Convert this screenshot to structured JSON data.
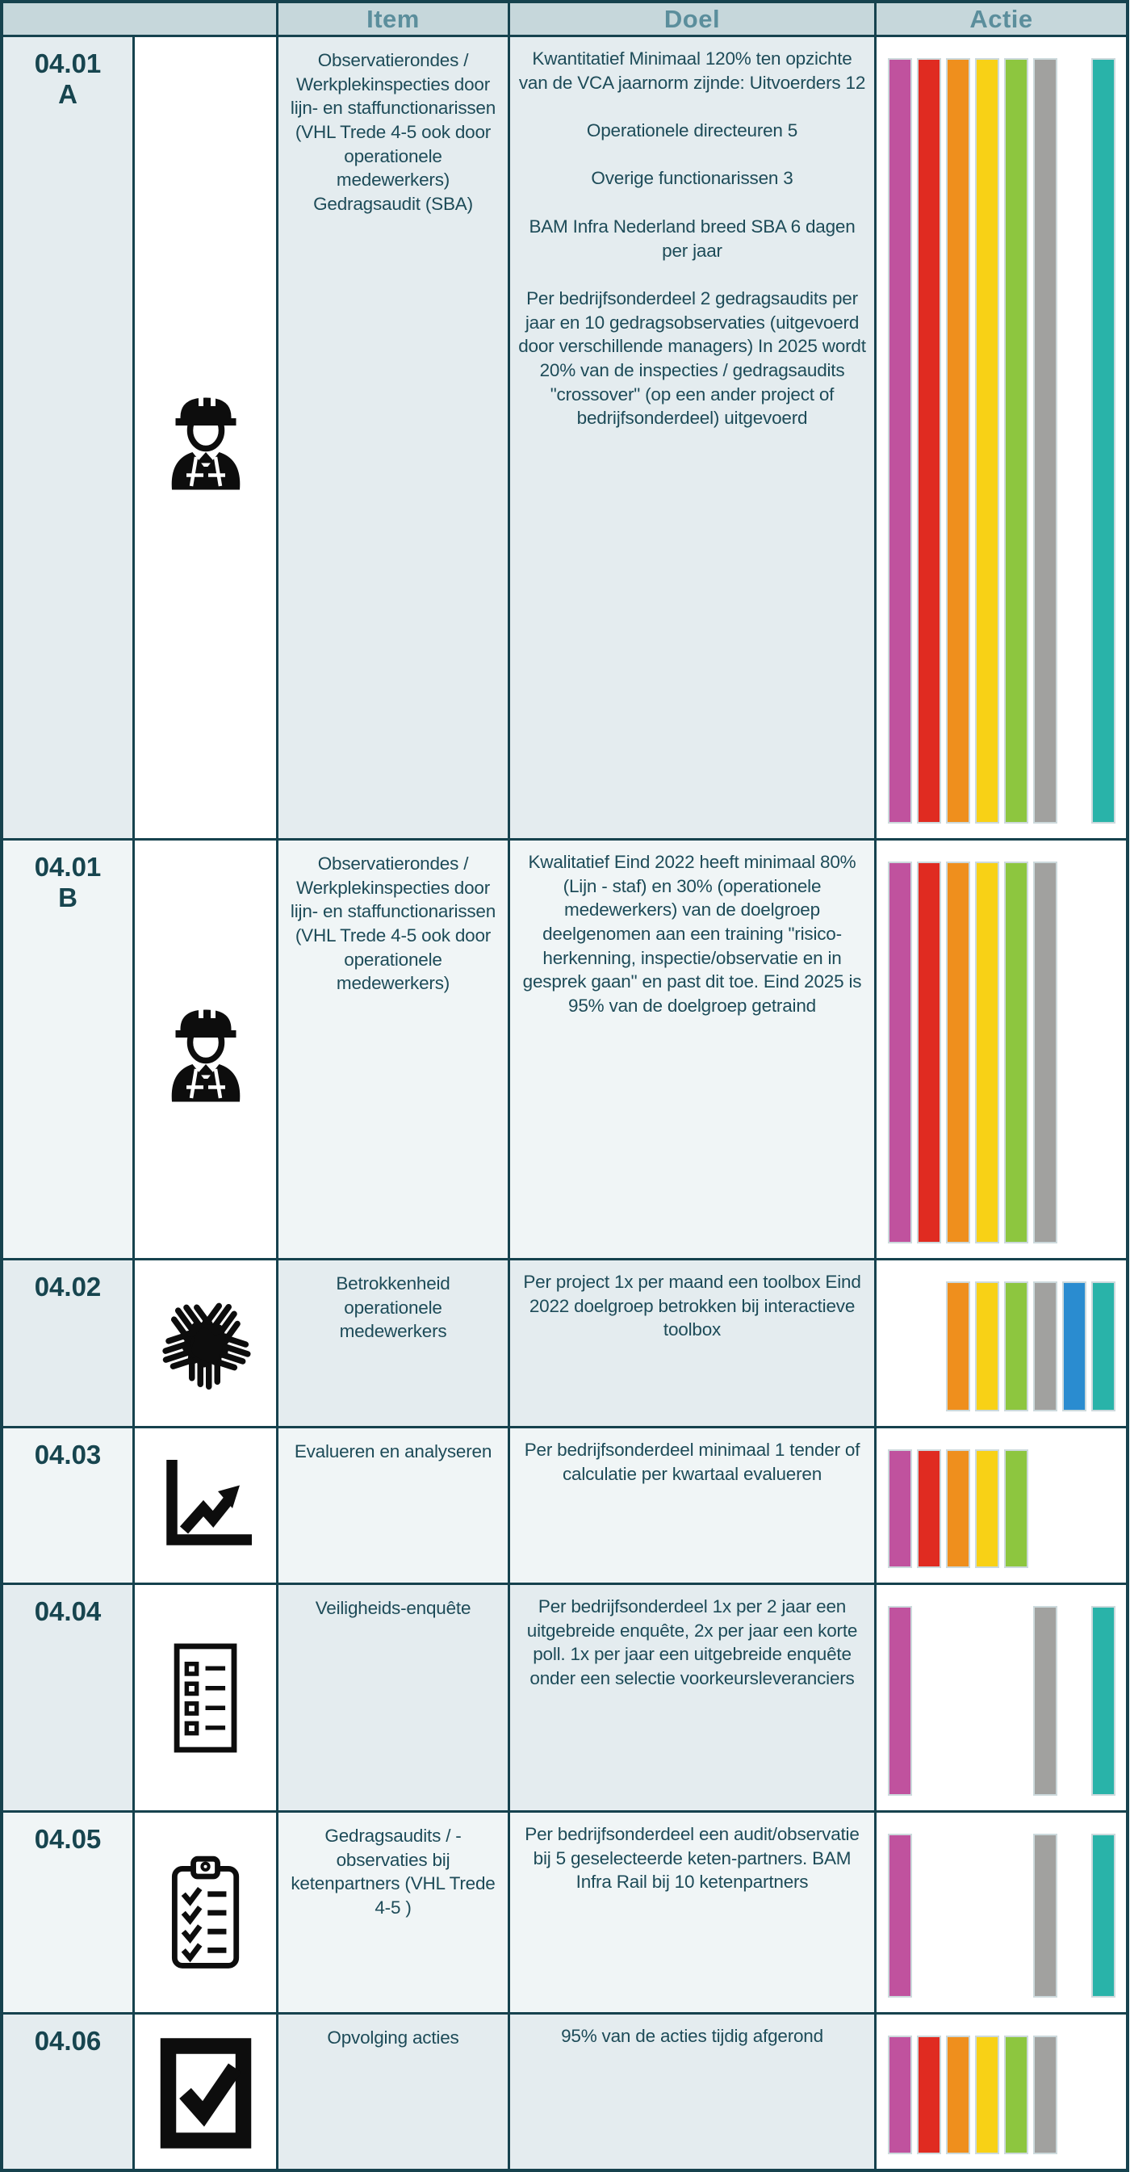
{
  "table": {
    "headers": {
      "item": "Item",
      "doel": "Doel",
      "actie": "Actie"
    },
    "bar_palette": {
      "magenta": "#c0529e",
      "red": "#e02b21",
      "orange": "#ef8f1d",
      "yellow": "#f8d116",
      "green": "#8dc63f",
      "gray": "#a1a19f",
      "blue": "#2a8cd0",
      "teal": "#29b3a9"
    },
    "rows": [
      {
        "id": "04.01\nA",
        "icon": "worker-icon",
        "item": "Observatierondes / Werkplekinspecties door lijn- en staffunctionarissen (VHL Trede 4-5 ook door operationele medewerkers) Gedragsaudit (SBA)",
        "doel": "Kwantitatief Minimaal 120% ten opzichte van de VCA jaarnorm zijnde: Uitvoerders 12\n\nOperationele directeuren 5\n\nOverige functionarissen 3\n\nBAM Infra Nederland breed SBA 6 dagen per jaar\n\nPer bedrijfsonderdeel 2 gedragsaudits per jaar en 10 gedragsobservaties (uitgevoerd door verschillende managers) In 2025 wordt 20% van de inspecties / gedragsaudits \"crossover\" (op een ander project of bedrijfsonderdeel) uitgevoerd",
        "bars": [
          "magenta",
          "red",
          "orange",
          "yellow",
          "green",
          "gray",
          null,
          "teal"
        ]
      },
      {
        "id": "04.01\nB",
        "icon": "worker-icon",
        "item": "Observatierondes / Werkplekinspecties door lijn- en staffunctionarissen (VHL Trede 4-5 ook door operationele medewerkers)",
        "doel": "Kwalitatief Eind 2022 heeft minimaal 80% (Lijn - staf) en 30% (operationele medewerkers) van de doelgroep deelgenomen aan een training \"risico-herkenning, inspectie/observatie en in gesprek gaan\" en past dit toe. Eind 2025 is 95% van de doelgroep getraind",
        "bars": [
          "magenta",
          "red",
          "orange",
          "yellow",
          "green",
          "gray",
          null,
          null
        ]
      },
      {
        "id": "04.02",
        "icon": "hands-team-icon",
        "item": "Betrokkenheid operationele medewerkers",
        "doel": "Per project 1x per maand een toolbox Eind 2022 doelgroep betrokken bij interactieve toolbox",
        "bars": [
          null,
          null,
          "orange",
          "yellow",
          "green",
          "gray",
          "blue",
          "teal"
        ]
      },
      {
        "id": "04.03",
        "icon": "chart-increase-icon",
        "item": "Evalueren en analyseren",
        "doel": "Per bedrijfsonderdeel minimaal 1 tender of calculatie per kwartaal evalueren",
        "bars": [
          "magenta",
          "red",
          "orange",
          "yellow",
          "green",
          null,
          null,
          null
        ]
      },
      {
        "id": "04.04",
        "icon": "survey-checklist-icon",
        "item": "Veiligheids-enquête",
        "doel": "Per bedrijfsonderdeel 1x per 2 jaar een uitgebreide enquête, 2x per jaar een korte poll. 1x per jaar een uitgebreide enquête onder een selectie voorkeursleveranciers",
        "bars": [
          "magenta",
          null,
          null,
          null,
          null,
          "gray",
          null,
          "teal"
        ]
      },
      {
        "id": "04.05",
        "icon": "clipboard-checks-icon",
        "item": "Gedragsaudits / -observaties bij ketenpartners (VHL Trede 4-5 )",
        "doel": "Per bedrijfsonderdeel een audit/observatie bij 5 geselecteerde keten-partners. BAM Infra Rail bij 10 ketenpartners",
        "bars": [
          "magenta",
          null,
          null,
          null,
          null,
          "gray",
          null,
          "teal"
        ]
      },
      {
        "id": "04.06",
        "icon": "checkbox-icon",
        "item": "Opvolging acties",
        "doel": "95% van de acties tijdig afgerond",
        "bars": [
          "magenta",
          "red",
          "orange",
          "yellow",
          "green",
          "gray",
          null,
          null
        ]
      }
    ]
  }
}
